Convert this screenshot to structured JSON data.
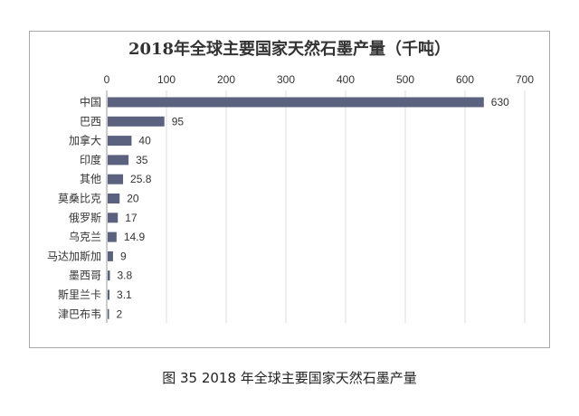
{
  "caption": "图 35 2018 年全球主要国家天然石墨产量",
  "chart_data": {
    "type": "bar",
    "orientation": "horizontal",
    "title": "2018年全球主要国家天然石墨产量（千吨）",
    "categories": [
      "中国",
      "巴西",
      "加拿大",
      "印度",
      "其他",
      "莫桑比克",
      "俄罗斯",
      "乌克兰",
      "马达加斯加",
      "墨西哥",
      "斯里兰卡",
      "津巴布韦"
    ],
    "values": [
      630,
      95,
      40,
      35,
      25.8,
      20,
      17,
      14.9,
      9,
      3.8,
      3.1,
      2
    ],
    "data_labels": [
      "630",
      "95",
      "40",
      "35",
      "25.8",
      "20",
      "17",
      "14.9",
      "9",
      "3.8",
      "3.1",
      "2"
    ],
    "xlim": [
      0,
      700
    ],
    "xticks": [
      0,
      100,
      200,
      300,
      400,
      500,
      600,
      700
    ],
    "x_axis_position": "top",
    "grid": true,
    "bar_color": "#5a6280"
  }
}
